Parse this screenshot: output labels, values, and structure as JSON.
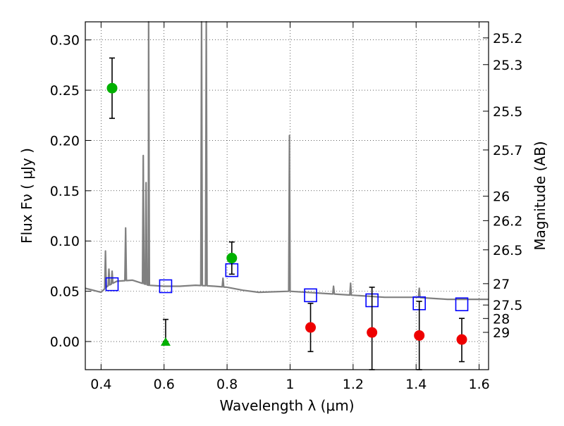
{
  "chart_data": {
    "type": "scatter",
    "xlabel": "Wavelength  λ (μm)",
    "ylabel": "Flux  Fν  ( μJy )",
    "ylabel_right": "Magnitude (AB)",
    "xlim": [
      0.35,
      1.63
    ],
    "ylim": [
      -0.028,
      0.318
    ],
    "grid": true,
    "xticks": [
      0.4,
      0.6,
      0.8,
      1.0,
      1.2,
      1.4,
      1.6
    ],
    "xtick_labels": [
      "0.4",
      "0.6",
      "0.8",
      "1",
      "1.2",
      "1.4",
      "1.6"
    ],
    "yticks": [
      0.0,
      0.05,
      0.1,
      0.15,
      0.2,
      0.25,
      0.3
    ],
    "ytick_labels": [
      "0.00",
      "0.05",
      "0.10",
      "0.15",
      "0.20",
      "0.25",
      "0.30"
    ],
    "mag_ticks": [
      25.2,
      25.3,
      25.5,
      25.7,
      26,
      26.2,
      26.5,
      27,
      27.5,
      28,
      29
    ],
    "mag_tick_labels": [
      "25.2",
      "25.3",
      "25.5",
      "25.7",
      "26",
      "26.2",
      "26.5",
      "27",
      "27.5",
      "28",
      "29"
    ],
    "colors": {
      "spectrum": "#808080",
      "model_box": "#0000ff",
      "detection": "#00b000",
      "nondetection": "#ee0000",
      "errorbar": "#000000"
    },
    "spectrum": {
      "continuum": [
        [
          0.35,
          0.053
        ],
        [
          0.4,
          0.049
        ],
        [
          0.42,
          0.055
        ],
        [
          0.45,
          0.06
        ],
        [
          0.5,
          0.061
        ],
        [
          0.55,
          0.056
        ],
        [
          0.6,
          0.055
        ],
        [
          0.65,
          0.055
        ],
        [
          0.7,
          0.056
        ],
        [
          0.76,
          0.055
        ],
        [
          0.8,
          0.054
        ],
        [
          0.85,
          0.051
        ],
        [
          0.9,
          0.049
        ],
        [
          1.0,
          0.05
        ],
        [
          1.1,
          0.048
        ],
        [
          1.2,
          0.046
        ],
        [
          1.3,
          0.044
        ],
        [
          1.4,
          0.044
        ],
        [
          1.5,
          0.042
        ],
        [
          1.63,
          0.042
        ]
      ],
      "lines": [
        [
          0.414,
          0.09
        ],
        [
          0.425,
          0.072
        ],
        [
          0.435,
          0.07
        ],
        [
          0.478,
          0.113
        ],
        [
          0.534,
          0.185
        ],
        [
          0.543,
          0.158
        ],
        [
          0.551,
          0.318
        ],
        [
          0.719,
          0.318
        ],
        [
          0.734,
          0.318
        ],
        [
          0.787,
          0.063
        ],
        [
          0.998,
          0.205
        ],
        [
          1.138,
          0.055
        ],
        [
          1.192,
          0.058
        ],
        [
          1.41,
          0.053
        ]
      ]
    },
    "series": [
      {
        "marker": "square",
        "points": [
          {
            "x": 0.435,
            "y": 0.057
          },
          {
            "x": 0.605,
            "y": 0.055
          },
          {
            "x": 0.815,
            "y": 0.071
          },
          {
            "x": 1.065,
            "y": 0.046
          },
          {
            "x": 1.26,
            "y": 0.041
          },
          {
            "x": 1.41,
            "y": 0.038
          },
          {
            "x": 1.545,
            "y": 0.037
          }
        ]
      },
      {
        "marker": "circle-green",
        "points": [
          {
            "x": 0.435,
            "y": 0.252,
            "ylo": 0.222,
            "yhi": 0.282
          },
          {
            "x": 0.815,
            "y": 0.083,
            "ylo": 0.067,
            "yhi": 0.099
          }
        ]
      },
      {
        "marker": "triangle-green",
        "points": [
          {
            "x": 0.605,
            "y": 0.0,
            "ylo": 0.0,
            "yhi": 0.022
          }
        ]
      },
      {
        "marker": "circle-red",
        "points": [
          {
            "x": 1.065,
            "y": 0.014,
            "ylo": -0.01,
            "yhi": 0.038
          },
          {
            "x": 1.26,
            "y": 0.009,
            "ylo": -0.028,
            "yhi": 0.054
          },
          {
            "x": 1.41,
            "y": 0.006,
            "ylo": -0.028,
            "yhi": 0.04
          },
          {
            "x": 1.545,
            "y": 0.002,
            "ylo": -0.02,
            "yhi": 0.023
          }
        ]
      }
    ]
  }
}
